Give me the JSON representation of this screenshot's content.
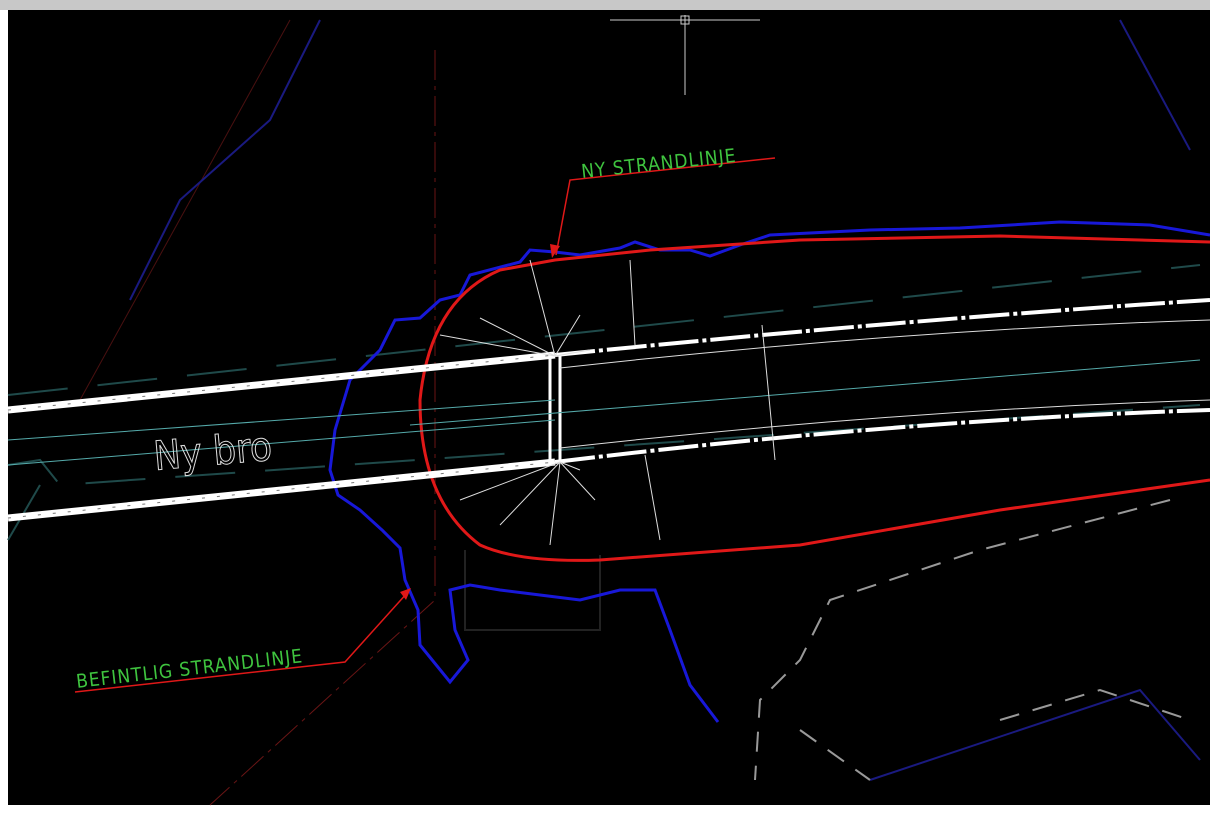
{
  "labels": {
    "new_shoreline": "NY STRANDLINJE",
    "existing_shoreline": "BEFINTLIG STRANDLINJE",
    "bridge": "Ny bro"
  }
}
